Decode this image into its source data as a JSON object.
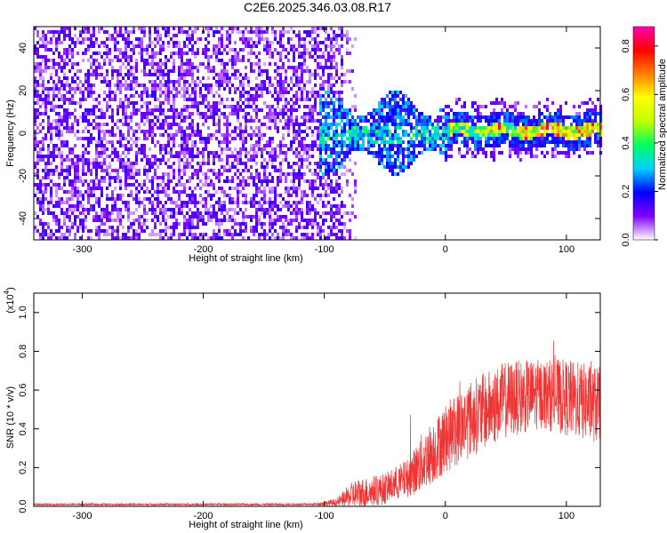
{
  "title": "C2E6.2025.346.03.08.R17",
  "chart_data": [
    {
      "type": "heatmap",
      "name": "spectrogram",
      "xlabel": "Height of straight line (km)",
      "ylabel": "Frequency (Hz)",
      "xlim": [
        -340,
        128
      ],
      "ylim": [
        -50,
        50
      ],
      "xticks": [
        -300,
        -200,
        -100,
        0,
        100
      ],
      "xtick_labels": [
        "-300",
        "-200",
        "-100",
        "0",
        "100"
      ],
      "yticks": [
        -40,
        -20,
        0,
        20,
        40
      ],
      "ytick_labels": [
        "-40",
        "-20",
        "0",
        "20",
        "40"
      ],
      "description_regions": [
        {
          "x_range": [
            -340,
            -80
          ],
          "freq_range": [
            -50,
            50
          ],
          "amplitude": 0.2
        },
        {
          "x_range": [
            -105,
            0
          ],
          "freq_range": [
            -15,
            18
          ],
          "amplitude": 0.3
        },
        {
          "x_range": [
            0,
            128
          ],
          "freq_range": [
            -5,
            7
          ],
          "amplitude": 0.6
        }
      ],
      "colorbar": {
        "label": "Normalized spectral amplitude",
        "range": [
          0,
          0.88
        ],
        "ticks": [
          0.0,
          0.2,
          0.4,
          0.6,
          0.8
        ],
        "tick_labels": [
          "0.0",
          "0.2",
          "0.4",
          "0.6",
          "0.8"
        ],
        "colors": [
          "#ffffff",
          "#8000ff",
          "#0000ff",
          "#00d0ff",
          "#00ff60",
          "#c0ff00",
          "#ffff00",
          "#ff8000",
          "#ff0000",
          "#ff00b0"
        ]
      }
    },
    {
      "type": "line",
      "name": "snr",
      "xlabel": "Height of straight line (km)",
      "ylabel": "SNR (10 * v/v)",
      "y_multiplier": "(x10",
      "y_multiplier_exp": "4",
      "y_multiplier_close": ")",
      "xlim": [
        -340,
        128
      ],
      "ylim": [
        0,
        1.1
      ],
      "xticks": [
        -300,
        -200,
        -100,
        0,
        100
      ],
      "xtick_labels": [
        "-300",
        "-200",
        "-100",
        "0",
        "100"
      ],
      "yticks": [
        0,
        0.2,
        0.4,
        0.6,
        0.8,
        1.0
      ],
      "ytick_labels": [
        "0.0",
        "0.2",
        "0.4",
        "0.6",
        "0.8",
        "1.0"
      ],
      "color": "#ef3434",
      "envelope": [
        {
          "x": -340,
          "mean": 0.01,
          "spread": 0.005
        },
        {
          "x": -110,
          "mean": 0.01,
          "spread": 0.005
        },
        {
          "x": -90,
          "mean": 0.02,
          "spread": 0.02
        },
        {
          "x": -75,
          "mean": 0.06,
          "spread": 0.08
        },
        {
          "x": -50,
          "mean": 0.09,
          "spread": 0.08
        },
        {
          "x": -30,
          "mean": 0.15,
          "spread": 0.1
        },
        {
          "x": -20,
          "mean": 0.22,
          "spread": 0.15
        },
        {
          "x": 0,
          "mean": 0.35,
          "spread": 0.18
        },
        {
          "x": 20,
          "mean": 0.45,
          "spread": 0.2
        },
        {
          "x": 50,
          "mean": 0.55,
          "spread": 0.2
        },
        {
          "x": 80,
          "mean": 0.58,
          "spread": 0.18
        },
        {
          "x": 100,
          "mean": 0.56,
          "spread": 0.2
        },
        {
          "x": 128,
          "mean": 0.52,
          "spread": 0.2
        }
      ]
    }
  ]
}
